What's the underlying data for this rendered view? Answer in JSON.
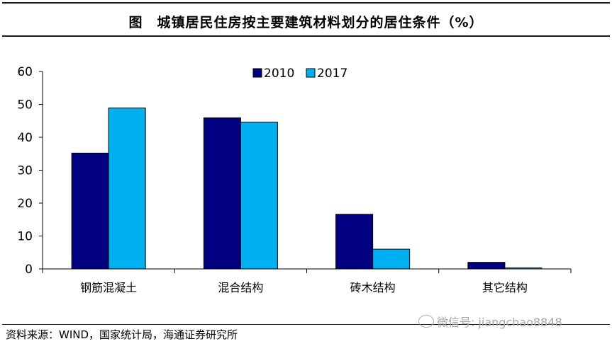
{
  "header": {
    "title": "图　城镇居民住房按主要建筑材料划分的居住条件（%）"
  },
  "footer": {
    "source": "资料来源：WIND，国家统计局，海通证券研究所",
    "watermark": "微信号: jiangchao8848"
  },
  "colors": {
    "series_2010": "#000080",
    "series_2017": "#00b0f0"
  },
  "chart_data": {
    "type": "bar",
    "categories": [
      "钢筋混凝土",
      "混合结构",
      "砖木结构",
      "其它结构"
    ],
    "series": [
      {
        "name": "2010",
        "values": [
          35.2,
          45.9,
          16.6,
          2.0
        ]
      },
      {
        "name": "2017",
        "values": [
          48.9,
          44.6,
          6.0,
          0.3
        ]
      }
    ],
    "ylim": [
      0,
      60
    ],
    "yticks": [
      0,
      10,
      20,
      30,
      40,
      50,
      60
    ],
    "legend": "top-center",
    "grid": false,
    "xlabel": "",
    "ylabel": ""
  }
}
